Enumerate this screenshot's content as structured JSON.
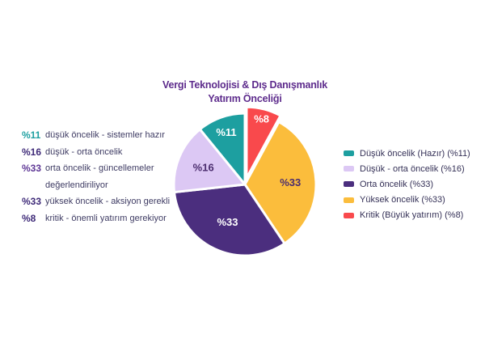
{
  "title": {
    "line1": "Vergi Teknolojisi & Dış Danışmanlık",
    "line2": "Yatırım Önceliği"
  },
  "chart_data": {
    "type": "pie",
    "title": "Vergi Teknolojisi & Dış Danışmanlık Yatırım Önceliği",
    "legend_position": "right",
    "labels_position": "inside",
    "slices": [
      {
        "label": "Kritik (Büyük yatırım)",
        "pct_label": "%8",
        "value": 8,
        "color": "#F9494C",
        "label_color": "#FFFFFF",
        "exploded": true
      },
      {
        "label": "Yüksek öncelik",
        "pct_label": "%33",
        "value": 33,
        "color": "#FBBD3C",
        "label_color": "#4B2D6E",
        "exploded": false
      },
      {
        "label": "Orta öncelik",
        "pct_label": "%33",
        "value": 33,
        "color": "#4B2E7E",
        "label_color": "#FFFFFF",
        "exploded": false
      },
      {
        "label": "Düşük - orta öncelik",
        "pct_label": "%16",
        "value": 16,
        "color": "#DCC8F4",
        "label_color": "#4B2D6E",
        "exploded": false
      },
      {
        "label": "Düşük öncelik (Hazır)",
        "pct_label": "%11",
        "value": 11,
        "color": "#1D9FA0",
        "label_color": "#FFFFFF",
        "exploded": false
      }
    ]
  },
  "left_legend": {
    "items": [
      {
        "pct": "%11",
        "pct_color": "#1D9FA0",
        "text": "düşük öncelik - sistemler hazır"
      },
      {
        "pct": "%16",
        "pct_color": "#3E2A78",
        "text": "düşük - orta öncelik"
      },
      {
        "pct": "%33",
        "pct_color": "#5E3795",
        "text": "orta öncelik - güncellemeler değerlendiriliyor"
      },
      {
        "pct": "%33",
        "pct_color": "#3E2A78",
        "text": "yüksek öncelik - aksiyon gerekli"
      },
      {
        "pct": "%8",
        "pct_color": "#3E2A78",
        "text": "kritik - önemli yatırım gerekiyor"
      }
    ]
  },
  "right_legend": {
    "items": [
      {
        "color": "#1D9FA0",
        "label": "Düşük öncelik (Hazır) (%11)"
      },
      {
        "color": "#DCC8F4",
        "label": "Düşük - orta öncelik (%16)"
      },
      {
        "color": "#4B2E7E",
        "label": "Orta öncelik (%33)"
      },
      {
        "color": "#FBBD3C",
        "label": "Yüksek öncelik (%33)"
      },
      {
        "color": "#F9494C",
        "label": "Kritik (Büyük yatırım) (%8)"
      }
    ]
  },
  "colors": {
    "title": "#5D2B8C",
    "body_text": "#3E3B63",
    "background": "#FFFFFF"
  }
}
